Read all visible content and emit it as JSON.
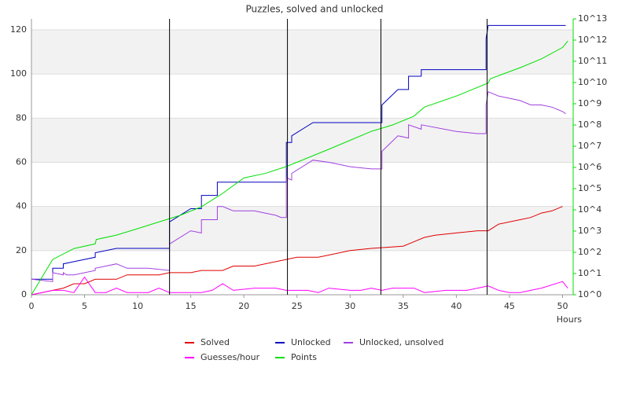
{
  "chart_data": {
    "type": "line",
    "title": "Puzzles, solved and unlocked",
    "x_label": "Hours",
    "xlim": [
      0,
      51
    ],
    "xticks": [
      0,
      5,
      10,
      15,
      20,
      25,
      30,
      35,
      40,
      45,
      50
    ],
    "ylim": [
      0,
      125
    ],
    "yticks": [
      0,
      20,
      40,
      60,
      80,
      100,
      120
    ],
    "y2lim": [
      1,
      10000000000000
    ],
    "y2_log": true,
    "y2ticks": [
      {
        "value": 1,
        "label": "10^0"
      },
      {
        "value": 10,
        "label": "10^1"
      },
      {
        "value": 100,
        "label": "10^2"
      },
      {
        "value": 1000,
        "label": "10^3"
      },
      {
        "value": 10000,
        "label": "10^4"
      },
      {
        "value": 100000,
        "label": "10^5"
      },
      {
        "value": 1000000,
        "label": "10^6"
      },
      {
        "value": 10000000,
        "label": "10^7"
      },
      {
        "value": 100000000,
        "label": "10^8"
      },
      {
        "value": 1000000000,
        "label": "10^9"
      },
      {
        "value": 10000000000,
        "label": "10^10"
      },
      {
        "value": 100000000000,
        "label": "10^11"
      },
      {
        "value": 1000000000000,
        "label": "10^12"
      },
      {
        "value": 10000000000000,
        "label": "10^13"
      }
    ],
    "grid": true,
    "vlines": [
      13,
      24.1,
      32.9,
      42.9
    ],
    "series": [
      {
        "name": "Solved",
        "color": "#e00000",
        "x": [
          0,
          1,
          2,
          3,
          4,
          5,
          6,
          8,
          9,
          12,
          13,
          15,
          16,
          18,
          19,
          21,
          23,
          24,
          25,
          27,
          28,
          29,
          30,
          32,
          35,
          36,
          37,
          38,
          40,
          42,
          43,
          44,
          46,
          47,
          48,
          49,
          50
        ],
        "values": [
          0,
          1,
          2,
          3,
          5,
          5,
          7,
          7,
          9,
          9,
          10,
          10,
          11,
          11,
          13,
          13,
          15,
          16,
          17,
          17,
          18,
          19,
          20,
          21,
          22,
          24,
          26,
          27,
          28,
          29,
          29,
          32,
          34,
          35,
          37,
          38,
          40
        ]
      },
      {
        "name": "Unlocked",
        "color": "#0000c0",
        "x": [
          0,
          2,
          2,
          3,
          3,
          4,
          6,
          6,
          8,
          13,
          13,
          15,
          16,
          16,
          17.5,
          17.5,
          24,
          24,
          24.5,
          24.5,
          26.5,
          33,
          33,
          34.5,
          35.5,
          35.5,
          36.7,
          36.7,
          42.8,
          42.8,
          43,
          50.3
        ],
        "values": [
          7,
          7,
          12,
          12,
          14,
          15,
          17,
          19,
          21,
          21,
          33,
          39,
          39,
          45,
          45,
          51,
          51,
          69,
          69,
          72,
          78,
          78,
          86,
          93,
          93,
          99,
          99,
          102,
          102,
          116,
          122,
          122
        ]
      },
      {
        "name": "Unlocked, unsolved",
        "color": "#a040e0",
        "x": [
          0,
          2,
          2,
          3,
          3,
          3.3,
          4,
          6,
          6,
          8,
          9,
          11,
          13,
          13,
          15,
          16,
          16,
          17.5,
          17.5,
          18,
          18.5,
          19,
          21,
          22,
          23,
          23.5,
          24,
          24,
          24.5,
          24.5,
          26.5,
          28,
          29,
          30,
          32,
          33,
          33,
          34.5,
          35.5,
          35.5,
          36.7,
          36.7,
          40,
          42,
          42.8,
          42.8,
          43,
          44,
          46,
          47,
          48,
          49,
          50,
          50.3
        ],
        "values": [
          7,
          6,
          10,
          9,
          10,
          9,
          9,
          11,
          12,
          14,
          12,
          12,
          11,
          23,
          29,
          28,
          34,
          34,
          40,
          40,
          39,
          38,
          38,
          37,
          36,
          35,
          35,
          53,
          52,
          55,
          61,
          60,
          59,
          58,
          57,
          57,
          65,
          72,
          71,
          77,
          75,
          77,
          74,
          73,
          73,
          86,
          92,
          90,
          88,
          86,
          86,
          85,
          83,
          82
        ]
      },
      {
        "name": "Guesses/hour",
        "color": "#ff00ff",
        "x": [
          0,
          1,
          2,
          3,
          4,
          5,
          6,
          7,
          8,
          9,
          11,
          12,
          13,
          16,
          17,
          18,
          19,
          21,
          23,
          24,
          26,
          27,
          28,
          30,
          31,
          32,
          33,
          34,
          36,
          37,
          39,
          41,
          42,
          43,
          44,
          45,
          46,
          47,
          48,
          50,
          50.5
        ],
        "values": [
          0,
          1,
          2,
          2,
          1,
          8,
          1,
          1,
          3,
          1,
          1,
          3,
          1,
          1,
          2,
          5,
          2,
          3,
          3,
          2,
          2,
          1,
          3,
          2,
          2,
          3,
          2,
          3,
          3,
          1,
          2,
          2,
          3,
          4,
          2,
          1,
          1,
          2,
          3,
          6,
          3
        ]
      },
      {
        "name": "Points",
        "color": "#00e000",
        "axis": "y2",
        "x": [
          0,
          2,
          4,
          6,
          6.1,
          8,
          10,
          12,
          14,
          16,
          18,
          20,
          22,
          24,
          26,
          28,
          30,
          32,
          34,
          36,
          37,
          40,
          43,
          43.2,
          46,
          48,
          50,
          50.5
        ],
        "values": [
          1,
          46,
          150,
          250,
          400,
          650,
          1300,
          2700,
          5500,
          14000,
          60000,
          320000,
          520000,
          1100000,
          2800000,
          7200000,
          19000000,
          50000000,
          100000000,
          260000000,
          700000000,
          2300000000,
          9500000000,
          15000000000,
          50000000000,
          130000000000,
          450000000000,
          900000000000
        ]
      }
    ]
  }
}
